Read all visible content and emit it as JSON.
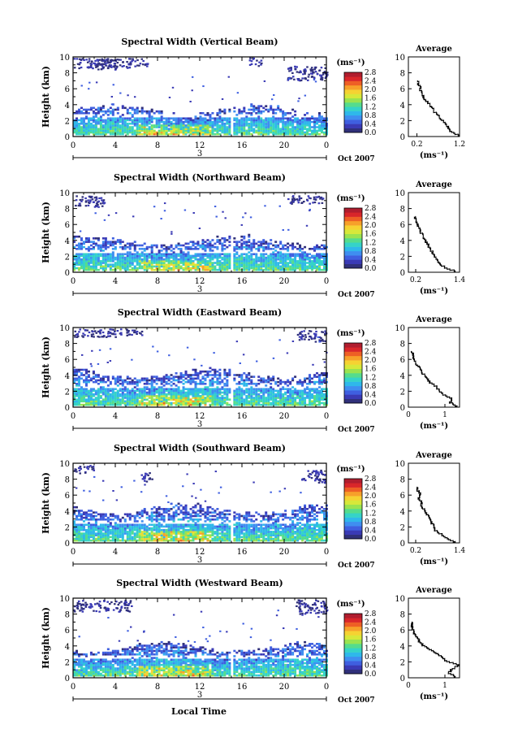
{
  "figure": {
    "y_axis_label": "Height (km)",
    "x_axis_label": "Local Time",
    "colorbar_unit": "(ms⁻¹)",
    "date_label": "Oct 2007",
    "day_marker": "3",
    "avg_title": "Average",
    "avg_unit": "(ms⁻¹)"
  },
  "colormap": [
    "#30307a",
    "#3a3ab5",
    "#3f5fe0",
    "#3f8ef0",
    "#2fb8ea",
    "#35d3c8",
    "#55dc8d",
    "#9ae350",
    "#d7e83a",
    "#f6d232",
    "#f7a02a",
    "#ee5f25",
    "#d9262a",
    "#b01d2e"
  ],
  "chart_data": [
    {
      "type": "heatmap",
      "title": "Spectral Width (Vertical Beam)",
      "x_ticks": [
        "0",
        "4",
        "8",
        "12",
        "16",
        "20",
        "0"
      ],
      "xlim": [
        0,
        24
      ],
      "ylim": [
        0,
        10
      ],
      "y_ticks": [
        "0",
        "2",
        "4",
        "6",
        "8",
        "10"
      ],
      "colorbar_ticks": [
        "0.0",
        "0.4",
        "0.8",
        "1.2",
        "1.6",
        "2.0",
        "2.4",
        "2.8"
      ],
      "colorbar_range": [
        0,
        2.8
      ],
      "main_top_km": 3.6,
      "upper_clusters": [
        [
          1.5,
          9.2,
          2.5,
          1.4
        ],
        [
          4.5,
          9.3,
          2.5,
          1.2
        ],
        [
          17.2,
          9.5,
          0.6,
          1.2
        ],
        [
          22.6,
          8.0,
          2.4,
          1.8
        ]
      ],
      "gap_hour": 14.9,
      "average_profile": {
        "xlim": [
          0.0,
          1.2
        ],
        "x_ticks": [
          "0.2",
          "1.2"
        ],
        "x_tick_values": [
          0.2,
          1.2
        ],
        "height_km": [
          0,
          0.5,
          1,
          1.5,
          2,
          2.5,
          3,
          3.5,
          4,
          4.5,
          5,
          5.5,
          6,
          6.5,
          7
        ],
        "width": [
          1.2,
          1.0,
          0.95,
          0.85,
          0.78,
          0.7,
          0.62,
          0.55,
          0.48,
          0.4,
          0.35,
          0.3,
          0.28,
          0.24,
          0.22
        ]
      }
    },
    {
      "type": "heatmap",
      "title": "Spectral Width (Northward Beam)",
      "x_ticks": [
        "0",
        "4",
        "8",
        "12",
        "16",
        "20",
        "0"
      ],
      "xlim": [
        0,
        24
      ],
      "ylim": [
        0,
        10
      ],
      "y_ticks": [
        "0",
        "2",
        "4",
        "6",
        "8",
        "10"
      ],
      "colorbar_ticks": [
        "0.0",
        "0.4",
        "0.8",
        "1.2",
        "1.6",
        "2.0",
        "2.4",
        "2.8"
      ],
      "colorbar_range": [
        0,
        2.8
      ],
      "main_top_km": 4.3,
      "upper_clusters": [
        [
          1.3,
          9.0,
          1.6,
          1.4
        ],
        [
          22.0,
          9.2,
          1.8,
          1.0
        ]
      ],
      "gap_hour": 14.9,
      "average_profile": {
        "xlim": [
          0.0,
          1.4
        ],
        "x_ticks": [
          "0.2",
          "1.4"
        ],
        "x_tick_values": [
          0.2,
          1.4
        ],
        "height_km": [
          0,
          0.5,
          1,
          1.5,
          2,
          2.5,
          3,
          3.5,
          4,
          4.5,
          5,
          5.5,
          6,
          6.5,
          7
        ],
        "width": [
          1.3,
          1.0,
          0.85,
          0.78,
          0.72,
          0.65,
          0.58,
          0.52,
          0.46,
          0.4,
          0.33,
          0.28,
          0.24,
          0.2,
          0.18
        ]
      }
    },
    {
      "type": "heatmap",
      "title": "Spectral Width (Eastward Beam)",
      "x_ticks": [
        "0",
        "4",
        "8",
        "12",
        "16",
        "20",
        "0"
      ],
      "xlim": [
        0,
        24
      ],
      "ylim": [
        0,
        10
      ],
      "y_ticks": [
        "0",
        "2",
        "4",
        "6",
        "8",
        "10"
      ],
      "colorbar_ticks": [
        "0.0",
        "0.4",
        "0.8",
        "1.2",
        "1.6",
        "2.0",
        "2.4",
        "2.8"
      ],
      "colorbar_range": [
        0,
        2.8
      ],
      "main_top_km": 4.5,
      "upper_clusters": [
        [
          1.0,
          9.4,
          3.0,
          1.0
        ],
        [
          5.0,
          9.5,
          1.5,
          0.8
        ],
        [
          22.5,
          9.0,
          1.5,
          1.4
        ]
      ],
      "gap_hour": 14.9,
      "average_profile": {
        "xlim": [
          0.0,
          1.4
        ],
        "x_ticks": [
          "0",
          "1"
        ],
        "x_tick_values": [
          0,
          1
        ],
        "height_km": [
          0,
          0.5,
          1,
          1.5,
          2,
          2.5,
          3,
          3.5,
          4,
          4.5,
          5,
          5.5,
          6,
          6.5,
          7
        ],
        "width": [
          1.35,
          1.15,
          1.2,
          0.95,
          0.85,
          0.75,
          0.6,
          0.5,
          0.42,
          0.35,
          0.28,
          0.2,
          0.15,
          0.12,
          0.1
        ]
      }
    },
    {
      "type": "heatmap",
      "title": "Spectral Width (Southward Beam)",
      "x_ticks": [
        "0",
        "4",
        "8",
        "12",
        "16",
        "20",
        "0"
      ],
      "xlim": [
        0,
        24
      ],
      "ylim": [
        0,
        10
      ],
      "y_ticks": [
        "0",
        "2",
        "4",
        "6",
        "8",
        "10"
      ],
      "colorbar_ticks": [
        "0.0",
        "0.4",
        "0.8",
        "1.2",
        "1.6",
        "2.0",
        "2.4",
        "2.8"
      ],
      "colorbar_range": [
        0,
        2.8
      ],
      "main_top_km": 4.6,
      "upper_clusters": [
        [
          0.7,
          9.3,
          1.2,
          1.0
        ],
        [
          7.0,
          8.4,
          0.6,
          1.2
        ],
        [
          22.8,
          8.4,
          1.2,
          1.6
        ]
      ],
      "gap_hour": 14.9,
      "average_profile": {
        "xlim": [
          0.0,
          1.4
        ],
        "x_ticks": [
          "0.2",
          "1.4"
        ],
        "x_tick_values": [
          0.2,
          1.4
        ],
        "height_km": [
          0,
          0.5,
          1,
          1.5,
          2,
          2.5,
          3,
          3.5,
          4,
          4.5,
          5,
          5.5,
          6,
          6.5,
          7
        ],
        "width": [
          1.3,
          1.05,
          0.9,
          0.75,
          0.7,
          0.62,
          0.58,
          0.5,
          0.44,
          0.35,
          0.36,
          0.28,
          0.34,
          0.26,
          0.24
        ]
      }
    },
    {
      "type": "heatmap",
      "title": "Spectral Width (Westward Beam)",
      "x_ticks": [
        "0",
        "4",
        "8",
        "12",
        "16",
        "20",
        "0"
      ],
      "xlim": [
        0,
        24
      ],
      "ylim": [
        0,
        10
      ],
      "y_ticks": [
        "0",
        "2",
        "4",
        "6",
        "8",
        "10"
      ],
      "colorbar_ticks": [
        "0.0",
        "0.4",
        "0.8",
        "1.2",
        "1.6",
        "2.0",
        "2.4",
        "2.8"
      ],
      "colorbar_range": [
        0,
        2.8
      ],
      "main_top_km": 4.1,
      "upper_clusters": [
        [
          2.5,
          9.1,
          3.0,
          1.4
        ],
        [
          22.5,
          9.0,
          1.5,
          1.8
        ]
      ],
      "gap_hour": 14.9,
      "average_profile": {
        "xlim": [
          0.0,
          1.4
        ],
        "x_ticks": [
          "0",
          "1"
        ],
        "x_tick_values": [
          0,
          1
        ],
        "height_km": [
          0,
          0.5,
          1,
          1.5,
          2,
          2.5,
          3,
          3.5,
          4,
          4.5,
          5,
          5.5,
          6,
          6.5,
          7
        ],
        "width": [
          1.3,
          1.1,
          1.2,
          1.4,
          1.05,
          0.9,
          0.78,
          0.55,
          0.4,
          0.3,
          0.22,
          0.16,
          0.12,
          0.1,
          0.08
        ]
      }
    }
  ]
}
